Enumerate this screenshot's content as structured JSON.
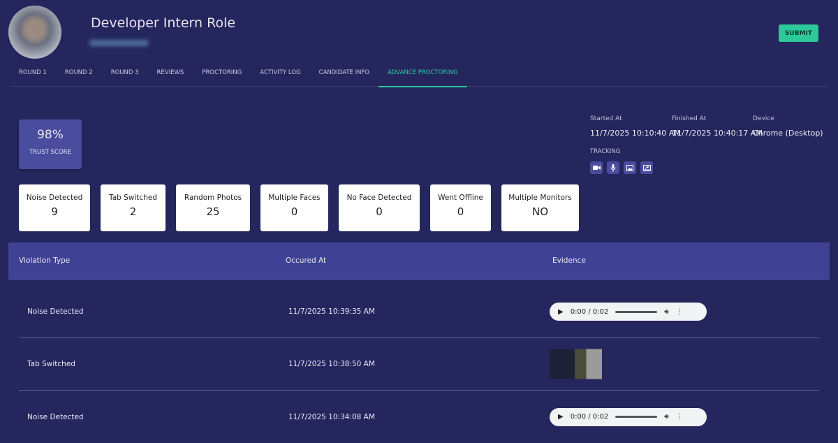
{
  "header": {
    "title": "Developer Intern Role",
    "submit_label": "SUBMIT"
  },
  "tabs": [
    {
      "label": "ROUND 1"
    },
    {
      "label": "ROUND 2"
    },
    {
      "label": "ROUND 3"
    },
    {
      "label": "REVIEWS"
    },
    {
      "label": "PROCTORING"
    },
    {
      "label": "ACTIVITY LOG"
    },
    {
      "label": "CANDIDATE INFO"
    },
    {
      "label": "ADVANCE PROCTORING",
      "active": true
    }
  ],
  "trust": {
    "value": "98%",
    "label": "TRUST SCORE"
  },
  "session": {
    "started_label": "Started At",
    "started": "11/7/2025 10:10:40 AM",
    "finished_label": "Finished At",
    "finished": "11/7/2025 10:40:17 AM",
    "device_label": "Device",
    "device": "Chrome (Desktop)",
    "tracking_label": "TRACKING",
    "tracking_icons": [
      "video-camera-icon",
      "microphone-icon",
      "image-icon",
      "screen-share-icon"
    ]
  },
  "stats": [
    {
      "label": "Noise Detected",
      "value": "9"
    },
    {
      "label": "Tab Switched",
      "value": "2"
    },
    {
      "label": "Random Photos",
      "value": "25"
    },
    {
      "label": "Multiple Faces",
      "value": "0"
    },
    {
      "label": "No Face Detected",
      "value": "0"
    },
    {
      "label": "Went Offline",
      "value": "0"
    },
    {
      "label": "Multiple Monitors",
      "value": "NO"
    }
  ],
  "table": {
    "headers": [
      "Violation Type",
      "Occured At",
      "Evidence"
    ],
    "rows": [
      {
        "type": "Noise Detected",
        "time": "11/7/2025 10:39:35 AM",
        "evidence": "audio",
        "audio_time": "0:00 / 0:02"
      },
      {
        "type": "Tab Switched",
        "time": "11/7/2025 10:38:50 AM",
        "evidence": "screenshot"
      },
      {
        "type": "Noise Detected",
        "time": "11/7/2025 10:34:08 AM",
        "evidence": "audio",
        "audio_time": "0:00 / 0:02"
      }
    ]
  },
  "colors": {
    "background": "#25265e",
    "accent": "#2cc99a",
    "card": "#4a4c9e",
    "table_header": "#3f4194"
  }
}
